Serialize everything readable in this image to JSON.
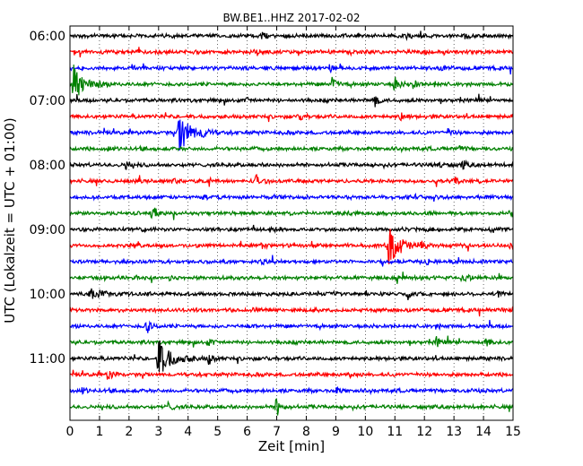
{
  "chart_data": {
    "type": "line",
    "title": "BW.BE1..HHZ 2017-02-02",
    "xlabel": "Zeit  [min]",
    "ylabel": "UTC (Lokalzeit = UTC + 01:00)",
    "xlim": [
      0,
      15
    ],
    "x_ticks": [
      "0",
      "1",
      "2",
      "3",
      "4",
      "5",
      "6",
      "7",
      "8",
      "9",
      "10",
      "11",
      "12",
      "13",
      "14",
      "15"
    ],
    "y_ticks": [
      "06:00",
      "07:00",
      "08:00",
      "09:00",
      "10:00",
      "11:00"
    ],
    "grid": "vertical dotted lines at each minute",
    "colors": [
      "#000000",
      "#ff0000",
      "#0000ff",
      "#008000"
    ],
    "series": [
      {
        "label": "06:00",
        "color": "#000000",
        "events": [
          [
            6.5,
            0.15
          ],
          [
            11.4,
            0.15
          ],
          [
            13.4,
            0.15
          ]
        ]
      },
      {
        "label": "06:15",
        "color": "#ff0000",
        "events": [
          [
            6.3,
            0.15
          ],
          [
            12.0,
            0.1
          ]
        ]
      },
      {
        "label": "06:30",
        "color": "#0000ff",
        "events": [
          [
            2.1,
            0.12
          ],
          [
            8.8,
            0.12
          ],
          [
            12.6,
            0.1
          ]
        ]
      },
      {
        "label": "06:45",
        "color": "#008000",
        "events": [
          [
            0.1,
            1.0
          ],
          [
            8.9,
            0.45
          ],
          [
            11.0,
            0.4
          ],
          [
            11.6,
            0.3
          ],
          [
            12.3,
            0.2
          ]
        ]
      },
      {
        "label": "07:00",
        "color": "#000000",
        "events": [
          [
            10.3,
            0.35
          ],
          [
            6.0,
            0.1
          ]
        ]
      },
      {
        "label": "07:15",
        "color": "#ff0000",
        "events": [
          [
            7.8,
            0.15
          ],
          [
            11.2,
            0.15
          ]
        ]
      },
      {
        "label": "07:30",
        "color": "#0000ff",
        "events": [
          [
            3.7,
            1.0
          ],
          [
            4.5,
            0.2
          ],
          [
            12.8,
            0.15
          ]
        ]
      },
      {
        "label": "07:45",
        "color": "#008000",
        "events": [
          [
            1.3,
            0.1
          ],
          [
            13.2,
            0.12
          ]
        ]
      },
      {
        "label": "08:00",
        "color": "#000000",
        "events": [
          [
            1.9,
            0.2
          ],
          [
            12.5,
            0.15
          ],
          [
            13.3,
            0.2
          ]
        ]
      },
      {
        "label": "08:15",
        "color": "#ff0000",
        "events": [
          [
            3.5,
            0.15
          ],
          [
            6.3,
            0.3
          ],
          [
            13.0,
            0.25
          ]
        ]
      },
      {
        "label": "08:30",
        "color": "#0000ff",
        "events": [
          [
            4.5,
            0.1
          ],
          [
            12.7,
            0.1
          ]
        ]
      },
      {
        "label": "08:45",
        "color": "#008000",
        "events": [
          [
            2.8,
            0.4
          ],
          [
            14.9,
            0.15
          ]
        ]
      },
      {
        "label": "09:00",
        "color": "#000000",
        "events": [
          [
            2.3,
            0.15
          ],
          [
            6.8,
            0.15
          ],
          [
            11.3,
            0.12
          ],
          [
            14.3,
            0.15
          ]
        ]
      },
      {
        "label": "09:15",
        "color": "#ff0000",
        "events": [
          [
            10.8,
            1.0
          ],
          [
            6.5,
            0.12
          ],
          [
            11.9,
            0.15
          ],
          [
            14.9,
            0.12
          ]
        ]
      },
      {
        "label": "09:30",
        "color": "#0000ff",
        "events": [
          [
            6.5,
            0.12
          ],
          [
            12.1,
            0.12
          ]
        ]
      },
      {
        "label": "09:45",
        "color": "#008000",
        "events": [
          [
            13.3,
            0.25
          ],
          [
            3.4,
            0.1
          ]
        ]
      },
      {
        "label": "10:00",
        "color": "#000000",
        "events": [
          [
            0.7,
            0.3
          ],
          [
            1.0,
            0.3
          ],
          [
            11.4,
            0.15
          ],
          [
            14.5,
            0.15
          ]
        ]
      },
      {
        "label": "10:15",
        "color": "#ff0000",
        "events": [
          [
            14.5,
            0.2
          ],
          [
            6.2,
            0.1
          ]
        ]
      },
      {
        "label": "10:30",
        "color": "#0000ff",
        "events": [
          [
            2.6,
            0.45
          ],
          [
            6.1,
            0.12
          ],
          [
            12.4,
            0.1
          ]
        ]
      },
      {
        "label": "10:45",
        "color": "#008000",
        "events": [
          [
            4.7,
            0.15
          ],
          [
            12.4,
            0.25
          ],
          [
            14.1,
            0.2
          ]
        ]
      },
      {
        "label": "11:00",
        "color": "#000000",
        "events": [
          [
            3.0,
            1.0
          ],
          [
            4.7,
            0.3
          ],
          [
            3.9,
            0.15
          ]
        ]
      },
      {
        "label": "11:15",
        "color": "#ff0000",
        "events": [
          [
            1.3,
            0.3
          ],
          [
            9.5,
            0.15
          ]
        ]
      },
      {
        "label": "11:30",
        "color": "#0000ff",
        "events": [
          [
            0.4,
            0.15
          ],
          [
            9.0,
            0.12
          ],
          [
            13.5,
            0.12
          ]
        ]
      },
      {
        "label": "11:45",
        "color": "#008000",
        "events": [
          [
            7.0,
            0.5
          ],
          [
            3.3,
            0.25
          ]
        ]
      }
    ]
  }
}
